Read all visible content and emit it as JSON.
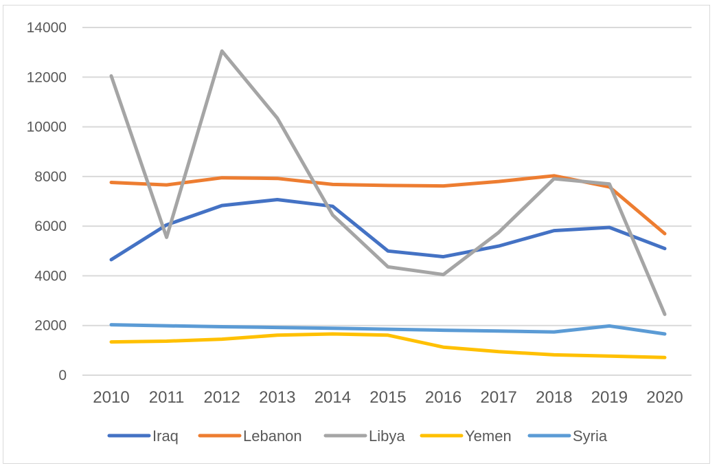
{
  "chart_data": {
    "type": "line",
    "title": "",
    "xlabel": "",
    "ylabel": "",
    "ylim": [
      0,
      14000
    ],
    "y_ticks": [
      0,
      2000,
      4000,
      6000,
      8000,
      10000,
      12000,
      14000
    ],
    "grid": true,
    "legend_position": "bottom",
    "categories": [
      "2010",
      "2011",
      "2012",
      "2013",
      "2014",
      "2015",
      "2016",
      "2017",
      "2018",
      "2019",
      "2020"
    ],
    "series": [
      {
        "name": "Iraq",
        "color": "#4472c4",
        "values": [
          4650,
          6050,
          6830,
          7070,
          6800,
          5000,
          4770,
          5200,
          5820,
          5950,
          5100
        ]
      },
      {
        "name": "Lebanon",
        "color": "#ed7d31",
        "values": [
          7760,
          7660,
          7950,
          7920,
          7680,
          7640,
          7620,
          7800,
          8030,
          7580,
          5700
        ]
      },
      {
        "name": "Libya",
        "color": "#a5a5a5",
        "values": [
          12050,
          5550,
          13050,
          10350,
          6450,
          4360,
          4050,
          5750,
          7910,
          7700,
          2450
        ]
      },
      {
        "name": "Yemen",
        "color": "#ffc000",
        "values": [
          1340,
          1370,
          1450,
          1610,
          1660,
          1610,
          1130,
          950,
          820,
          770,
          710
        ]
      },
      {
        "name": "Syria",
        "color": "#5b9bd5",
        "values": [
          2030,
          1990,
          1950,
          1920,
          1890,
          1850,
          1810,
          1780,
          1740,
          1980,
          1660
        ]
      }
    ]
  }
}
